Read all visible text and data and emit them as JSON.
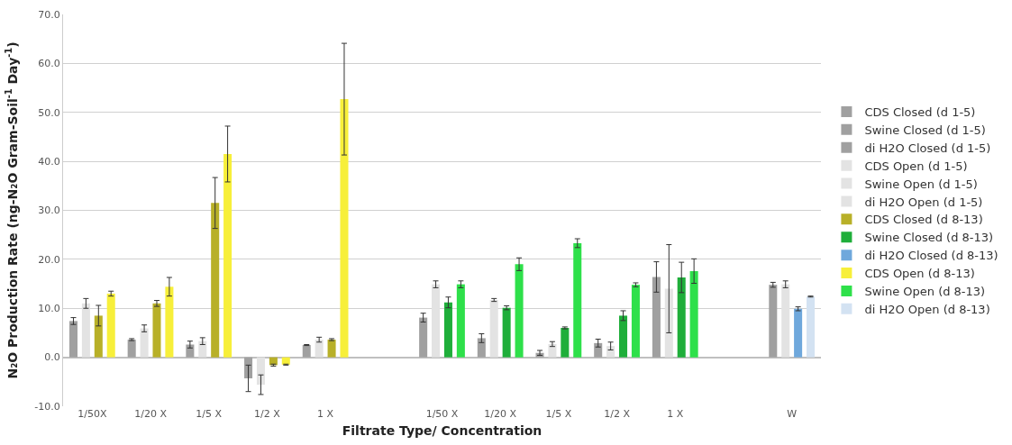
{
  "chart_data": {
    "type": "bar",
    "xlabel": "Filtrate Type/ Concentration",
    "ylabel": "N₂O Production Rate (ng-N₂O Gram-Soil$^{-1}$ Day$^{-1}$)",
    "categories": [
      "1/50X",
      "1/20 X",
      "1/5 X",
      "1/2 X",
      "1 X",
      null,
      "1/50 X",
      "1/20 X",
      "1/5 X",
      "1/2 X",
      "1 X",
      null,
      "W"
    ],
    "ylim": [
      -10,
      70
    ],
    "yticks": [
      {
        "value": -10,
        "label": "-10.0"
      },
      {
        "value": 0,
        "label": "0.0"
      },
      {
        "value": 10,
        "label": "10.0"
      },
      {
        "value": 20,
        "label": "20.0"
      },
      {
        "value": 30,
        "label": "30.0"
      },
      {
        "value": 40,
        "label": "40.0"
      },
      {
        "value": 50,
        "label": "50.0"
      },
      {
        "value": 60,
        "label": "60.0"
      },
      {
        "value": 70,
        "label": "70.0"
      }
    ],
    "grid": "y",
    "legend": "right",
    "series": [
      {
        "name": "CDS Closed (d 1-5)",
        "color": "#a0a0a0",
        "values": [
          7.4,
          3.6,
          2.6,
          -4.3,
          2.5,
          null,
          null,
          null,
          null,
          null,
          null,
          null,
          null
        ],
        "errors": [
          0.7,
          0.2,
          0.7,
          2.7,
          0.1,
          null,
          null,
          null,
          null,
          null,
          null,
          null,
          null
        ]
      },
      {
        "name": "Swine Closed (d 1-5)",
        "color": "#a0a0a0",
        "values": [
          null,
          null,
          null,
          null,
          null,
          null,
          8.1,
          3.9,
          0.9,
          2.9,
          16.4,
          null,
          null
        ],
        "errors": [
          null,
          null,
          null,
          null,
          null,
          null,
          0.9,
          0.9,
          0.5,
          0.8,
          3.1,
          null,
          null
        ]
      },
      {
        "name": "di H2O Closed (d 1-5)",
        "color": "#a0a0a0",
        "values": [
          null,
          null,
          null,
          null,
          null,
          null,
          null,
          null,
          null,
          null,
          null,
          null,
          14.8
        ],
        "errors": [
          null,
          null,
          null,
          null,
          null,
          null,
          null,
          null,
          null,
          null,
          null,
          null,
          0.5
        ]
      },
      {
        "name": "CDS Open (d 1-5)",
        "color": "#e3e3e3",
        "values": [
          11.0,
          5.9,
          3.3,
          -5.6,
          3.6,
          null,
          null,
          null,
          null,
          null,
          null,
          null,
          null
        ],
        "errors": [
          1.0,
          0.7,
          0.7,
          2.0,
          0.5,
          null,
          null,
          null,
          null,
          null,
          null,
          null,
          null
        ]
      },
      {
        "name": "Swine Open (d 1-5)",
        "color": "#e3e3e3",
        "values": [
          null,
          null,
          null,
          null,
          null,
          null,
          14.9,
          11.7,
          2.7,
          2.3,
          14.0,
          null,
          null
        ],
        "errors": [
          null,
          null,
          null,
          null,
          null,
          null,
          0.7,
          0.3,
          0.5,
          0.8,
          9.0,
          null,
          null
        ]
      },
      {
        "name": "di H2O Open (d 1-5)",
        "color": "#e3e3e3",
        "values": [
          null,
          null,
          null,
          null,
          null,
          null,
          null,
          null,
          null,
          null,
          null,
          null,
          14.9
        ],
        "errors": [
          null,
          null,
          null,
          null,
          null,
          null,
          null,
          null,
          null,
          null,
          null,
          null,
          0.7
        ]
      },
      {
        "name": "CDS Closed (d 8-13)",
        "color": "#b8b028",
        "values": [
          8.5,
          11.0,
          31.5,
          -1.6,
          3.6,
          null,
          null,
          null,
          null,
          null,
          null,
          null,
          null
        ],
        "errors": [
          2.1,
          0.6,
          5.2,
          0.2,
          0.2,
          null,
          null,
          null,
          null,
          null,
          null,
          null,
          null
        ]
      },
      {
        "name": "Swine Closed (d 8-13)",
        "color": "#1fae3a",
        "values": [
          null,
          null,
          null,
          null,
          null,
          null,
          11.2,
          10.1,
          6.0,
          8.5,
          16.3,
          null,
          null
        ],
        "errors": [
          null,
          null,
          null,
          null,
          null,
          null,
          1.1,
          0.4,
          0.2,
          1.0,
          3.1,
          null,
          null
        ]
      },
      {
        "name": "di H2O Closed (d 8-13)",
        "color": "#6fa8dc",
        "values": [
          null,
          null,
          null,
          null,
          null,
          null,
          null,
          null,
          null,
          null,
          null,
          null,
          9.9
        ],
        "errors": [
          null,
          null,
          null,
          null,
          null,
          null,
          null,
          null,
          null,
          null,
          null,
          null,
          0.4
        ]
      },
      {
        "name": "CDS Open (d 8-13)",
        "color": "#f7ef3a",
        "values": [
          13.0,
          14.4,
          41.5,
          -1.5,
          52.7,
          null,
          null,
          null,
          null,
          null,
          null,
          null,
          null
        ],
        "errors": [
          0.5,
          1.9,
          5.7,
          0.1,
          11.4,
          null,
          null,
          null,
          null,
          null,
          null,
          null,
          null
        ]
      },
      {
        "name": "Swine Open (d 8-13)",
        "color": "#2ee04a",
        "values": [
          null,
          null,
          null,
          null,
          null,
          null,
          14.9,
          19.0,
          23.3,
          14.8,
          17.6,
          null,
          null
        ],
        "errors": [
          null,
          null,
          null,
          null,
          null,
          null,
          0.7,
          1.3,
          0.9,
          0.4,
          2.5,
          null,
          null
        ]
      },
      {
        "name": "di H2O Open (d 8-13)",
        "color": "#d3e2f2",
        "values": [
          null,
          null,
          null,
          null,
          null,
          null,
          null,
          null,
          null,
          null,
          null,
          null,
          12.4
        ],
        "errors": [
          null,
          null,
          null,
          null,
          null,
          null,
          null,
          null,
          null,
          null,
          null,
          null,
          0.1
        ]
      }
    ]
  }
}
